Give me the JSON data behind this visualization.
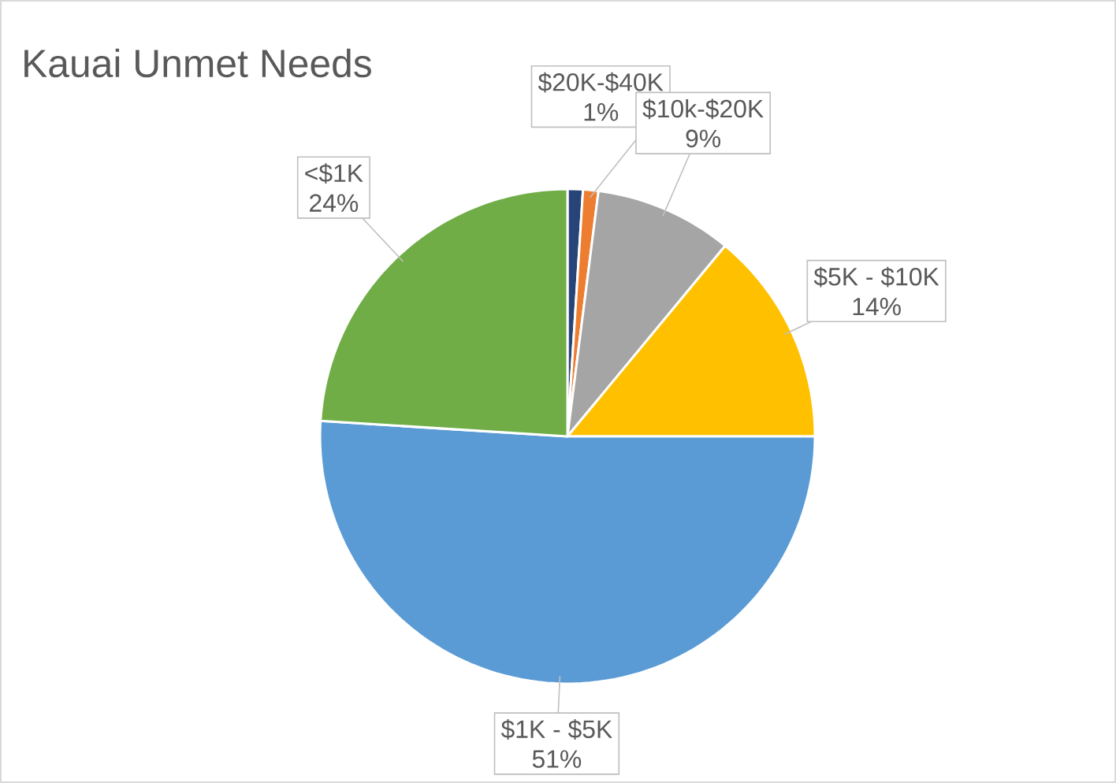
{
  "chart_data": {
    "type": "pie",
    "title": "Kauai Unmet Needs",
    "categories": [
      null,
      "$20K-$40K",
      "$10k-$20K",
      "$5K - $10K",
      "$1K - $5K",
      "<$1K"
    ],
    "values": [
      1,
      1,
      9,
      14,
      51,
      24
    ],
    "value_labels": [
      null,
      "1%",
      "9%",
      "14%",
      "51%",
      "24%"
    ],
    "colors": [
      "#264478",
      "#ed7d31",
      "#a5a5a5",
      "#ffc000",
      "#5b9bd5",
      "#70ad47"
    ]
  }
}
